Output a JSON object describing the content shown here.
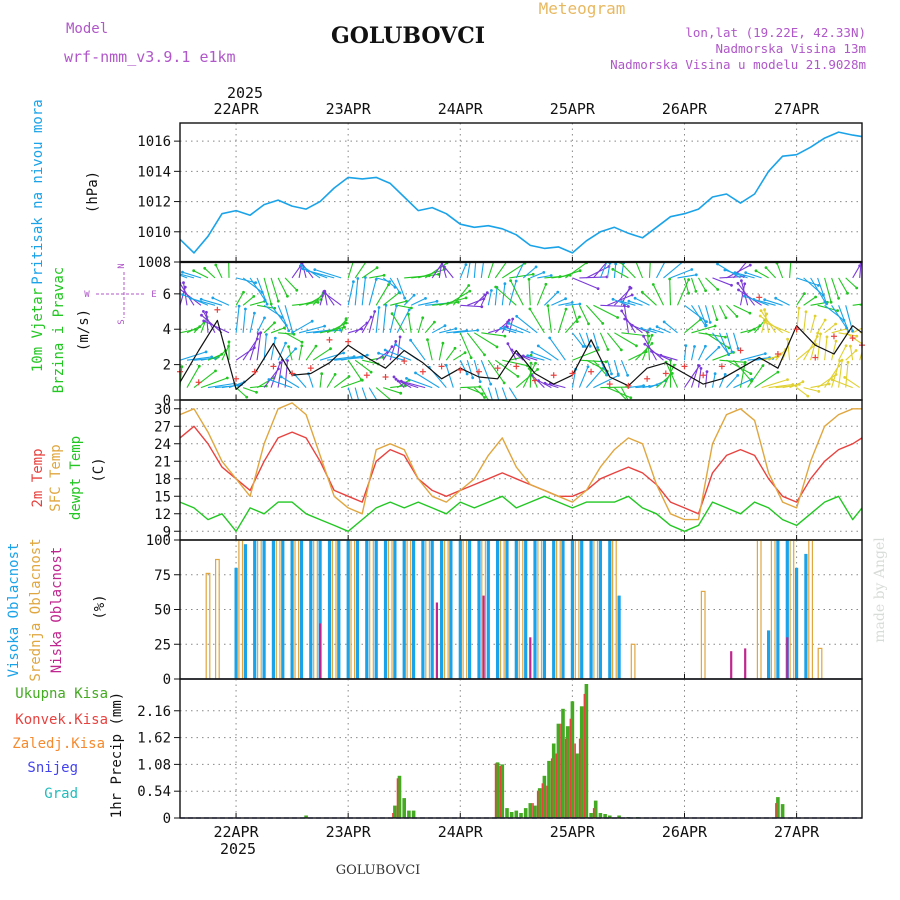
{
  "header": {
    "model_label": "Model",
    "model_name": "wrf-nmm_v3.9.1 e1km",
    "station": "GOLUBOVCI",
    "chart_kind": "Meteogram",
    "lonlat": "lon,lat (19.22E, 42.33N)",
    "altitude": "Nadmorska Visina 13m",
    "model_altitude": "Nadmorska Visina u modelu 21.9028m"
  },
  "footer": {
    "station": "GOLUBOVCI",
    "credit": "made by Angel"
  },
  "colors": {
    "pressure": "#1aa3e8",
    "temp2m": "#e8423f",
    "sfc": "#e0a63f",
    "dewpt": "#22c722",
    "high": "#1aa3e8",
    "mid": "#e0a63f",
    "low": "#c0268f",
    "total": "#44aa22",
    "conv": "#e8423f",
    "frozen": "#f58a2e",
    "snow": "#4444ee",
    "hail": "#22bbbb",
    "model": "#b057c9"
  },
  "x_axis": {
    "year": "2025",
    "days": [
      "22APR",
      "23APR",
      "24APR",
      "25APR",
      "26APR",
      "27APR"
    ],
    "day_hours": [
      12,
      36,
      60,
      84,
      108,
      132
    ],
    "range_hours": [
      0,
      146
    ]
  },
  "wind_compass": {
    "north": "N",
    "south": "S",
    "east": "E",
    "west": "W"
  },
  "chart_data": [
    {
      "type": "line",
      "title": "",
      "ylabel": "Pritisak na nivou mora",
      "unit": "(hPa)",
      "ylim": [
        1008,
        1017.2
      ],
      "yticks": [
        1008,
        1010,
        1012,
        1014,
        1016
      ],
      "grid": true,
      "series": [
        {
          "name": "Pritisak na nivou mora",
          "x": [
            0,
            3,
            6,
            9,
            12,
            15,
            18,
            21,
            24,
            27,
            30,
            33,
            36,
            39,
            42,
            45,
            48,
            51,
            54,
            57,
            60,
            63,
            66,
            69,
            72,
            75,
            78,
            81,
            84,
            87,
            90,
            93,
            96,
            99,
            102,
            105,
            108,
            111,
            114,
            117,
            120,
            123,
            126,
            129,
            132,
            135,
            138,
            141,
            144,
            146
          ],
          "y": [
            1009.5,
            1008.6,
            1009.7,
            1011.2,
            1011.4,
            1011.1,
            1011.8,
            1012.1,
            1011.7,
            1011.5,
            1012.0,
            1012.9,
            1013.6,
            1013.5,
            1013.6,
            1013.2,
            1012.3,
            1011.4,
            1011.6,
            1011.2,
            1010.5,
            1010.3,
            1010.4,
            1010.2,
            1009.8,
            1009.1,
            1008.9,
            1009.0,
            1008.6,
            1009.4,
            1010.0,
            1010.3,
            1009.9,
            1009.6,
            1010.3,
            1011.0,
            1011.2,
            1011.5,
            1012.3,
            1012.5,
            1011.9,
            1012.5,
            1014.0,
            1015.0,
            1015.1,
            1015.6,
            1016.2,
            1016.6,
            1016.4,
            1016.3
          ]
        }
      ]
    },
    {
      "type": "line",
      "title": "",
      "ylabel": "10m Vjetar Brzina i Pravac",
      "unit": "(m/s)",
      "ylim": [
        0,
        7.8
      ],
      "yticks": [
        0,
        2,
        4,
        6
      ],
      "grid": true,
      "series": [
        {
          "name": "10m Vjetar",
          "x": [
            0,
            4,
            8,
            12,
            16,
            20,
            24,
            28,
            32,
            36,
            40,
            44,
            48,
            52,
            56,
            60,
            64,
            68,
            72,
            76,
            80,
            84,
            88,
            92,
            96,
            100,
            104,
            108,
            112,
            116,
            120,
            124,
            128,
            132,
            136,
            140,
            144,
            146
          ],
          "y": [
            1.0,
            2.8,
            4.5,
            0.6,
            1.5,
            3.2,
            1.4,
            1.5,
            2.1,
            3.1,
            2.4,
            1.8,
            2.8,
            2.1,
            1.2,
            1.8,
            1.3,
            1.2,
            2.8,
            1.5,
            0.9,
            1.4,
            3.4,
            1.3,
            0.8,
            1.8,
            2.1,
            1.5,
            0.9,
            1.2,
            1.8,
            2.4,
            1.8,
            4.2,
            3.1,
            2.6,
            4.2,
            3.8
          ]
        },
        {
          "name": "udari",
          "x": [
            0,
            4,
            8,
            12,
            16,
            20,
            24,
            28,
            32,
            36,
            40,
            44,
            48,
            52,
            56,
            60,
            64,
            68,
            72,
            76,
            80,
            84,
            88,
            92,
            96,
            100,
            104,
            108,
            112,
            116,
            120,
            124,
            128,
            132,
            136,
            140,
            144,
            146
          ],
          "y": [
            1.6,
            1.0,
            5.1,
            1.2,
            1.6,
            1.9,
            1.5,
            1.8,
            3.4,
            3.3,
            1.4,
            1.3,
            2.2,
            1.6,
            1.9,
            1.7,
            1.6,
            1.8,
            1.9,
            1.1,
            1.4,
            1.5,
            1.6,
            0.9,
            0.8,
            1.2,
            1.5,
            1.9,
            1.4,
            1.9,
            2.8,
            5.8,
            2.6,
            4.0,
            2.4,
            3.6,
            3.5,
            3.1
          ]
        }
      ]
    },
    {
      "type": "line",
      "title": "",
      "ylabel": "2m Temp / SFC Temp / dewpt Temp",
      "unit": "(C)",
      "ylim": [
        7.5,
        31.5
      ],
      "yticks": [
        9,
        12,
        15,
        18,
        21,
        24,
        27,
        30
      ],
      "grid": true,
      "series": [
        {
          "name": "2m Temp",
          "x": [
            0,
            3,
            6,
            9,
            12,
            15,
            18,
            21,
            24,
            27,
            30,
            33,
            36,
            39,
            42,
            45,
            48,
            51,
            54,
            57,
            60,
            63,
            66,
            69,
            72,
            75,
            78,
            81,
            84,
            87,
            90,
            93,
            96,
            99,
            102,
            105,
            108,
            111,
            114,
            117,
            120,
            123,
            126,
            129,
            132,
            135,
            138,
            141,
            144,
            146
          ],
          "y": [
            25,
            27,
            24,
            20,
            18,
            16,
            21,
            25,
            26,
            25,
            21,
            16,
            15,
            14,
            21,
            23,
            22,
            18,
            16,
            15,
            16,
            17,
            18,
            19,
            18,
            17,
            16,
            15,
            15,
            16,
            18,
            19,
            20,
            19,
            17,
            14,
            13,
            12,
            19,
            22,
            23,
            22,
            18,
            15,
            14,
            18,
            21,
            23,
            24,
            25
          ]
        },
        {
          "name": "SFC Temp",
          "x": [
            0,
            3,
            6,
            9,
            12,
            15,
            18,
            21,
            24,
            27,
            30,
            33,
            36,
            39,
            42,
            45,
            48,
            51,
            54,
            57,
            60,
            63,
            66,
            69,
            72,
            75,
            78,
            81,
            84,
            87,
            90,
            93,
            96,
            99,
            102,
            105,
            108,
            111,
            114,
            117,
            120,
            123,
            126,
            129,
            132,
            135,
            138,
            141,
            144,
            146
          ],
          "y": [
            29,
            30,
            26,
            21,
            18,
            15,
            24,
            30,
            31,
            29,
            22,
            15,
            13,
            12,
            23,
            24,
            23,
            18,
            15,
            14,
            16,
            18,
            22,
            25,
            20,
            17,
            16,
            15,
            14,
            16,
            20,
            23,
            25,
            24,
            17,
            12,
            11,
            11,
            24,
            29,
            30,
            28,
            19,
            14,
            13,
            21,
            27,
            29,
            30,
            30
          ]
        },
        {
          "name": "dewpt Temp",
          "x": [
            0,
            3,
            6,
            9,
            12,
            15,
            18,
            21,
            24,
            27,
            30,
            33,
            36,
            39,
            42,
            45,
            48,
            51,
            54,
            57,
            60,
            63,
            66,
            69,
            72,
            75,
            78,
            81,
            84,
            87,
            90,
            93,
            96,
            99,
            102,
            105,
            108,
            111,
            114,
            117,
            120,
            123,
            126,
            129,
            132,
            135,
            138,
            141,
            144,
            146
          ],
          "y": [
            14,
            13,
            11,
            12,
            9,
            13,
            12,
            14,
            14,
            12,
            11,
            10,
            9,
            11,
            13,
            14,
            13,
            14,
            13,
            12,
            14,
            13,
            14,
            15,
            13,
            14,
            15,
            14,
            13,
            14,
            14,
            14,
            15,
            13,
            12,
            10,
            9,
            10,
            14,
            13,
            12,
            14,
            13,
            11,
            10,
            12,
            14,
            15,
            11,
            13
          ]
        }
      ]
    },
    {
      "type": "bar",
      "title": "",
      "ylabel": "Visoka Oblacnost / Srednja Oblacnost / Niska Oblacnost",
      "unit": "(%)",
      "ylim": [
        0,
        100
      ],
      "yticks": [
        0,
        25,
        50,
        75,
        100
      ],
      "grid": true,
      "series": [
        {
          "name": "Visoka Oblacnost",
          "x": [
            12,
            14,
            16,
            18,
            20,
            22,
            24,
            26,
            28,
            30,
            32,
            34,
            36,
            38,
            40,
            42,
            44,
            46,
            48,
            50,
            52,
            54,
            56,
            58,
            60,
            62,
            64,
            66,
            68,
            70,
            72,
            74,
            76,
            78,
            80,
            82,
            84,
            86,
            88,
            90,
            92,
            94,
            120,
            126,
            128,
            130,
            132,
            134
          ],
          "y": [
            80,
            97,
            100,
            100,
            100,
            100,
            100,
            100,
            100,
            100,
            100,
            100,
            100,
            100,
            100,
            100,
            100,
            100,
            100,
            100,
            100,
            100,
            100,
            100,
            100,
            100,
            100,
            100,
            100,
            100,
            100,
            100,
            100,
            100,
            100,
            100,
            100,
            100,
            100,
            100,
            100,
            60,
            0,
            35,
            100,
            100,
            80,
            90
          ]
        },
        {
          "name": "Srednja Oblacnost",
          "x": [
            6,
            8,
            13,
            17,
            21,
            25,
            29,
            33,
            37,
            41,
            45,
            49,
            53,
            57,
            61,
            65,
            69,
            73,
            77,
            81,
            85,
            89,
            93,
            97,
            112,
            124,
            127,
            131,
            135,
            137
          ],
          "y": [
            76,
            86,
            100,
            100,
            100,
            100,
            100,
            100,
            100,
            100,
            100,
            100,
            100,
            100,
            100,
            100,
            100,
            100,
            100,
            100,
            100,
            100,
            100,
            25,
            63,
            100,
            100,
            100,
            100,
            22
          ]
        },
        {
          "name": "Niska Oblacnost",
          "x": [
            30,
            55,
            65,
            75,
            118,
            121,
            130
          ],
          "y": [
            40,
            55,
            60,
            30,
            20,
            22,
            30
          ]
        }
      ]
    },
    {
      "type": "bar",
      "title": "",
      "ylabel": "1hr Precip",
      "unit": "(mm)",
      "ylim": [
        0,
        2.8
      ],
      "yticks": [
        0,
        0.54,
        1.08,
        1.62,
        2.16
      ],
      "grid": true,
      "series": [
        {
          "name": "Ukupna Kisa",
          "x": [
            27,
            46,
            47,
            48,
            49,
            50,
            68,
            69,
            70,
            71,
            72,
            73,
            74,
            75,
            76,
            77,
            78,
            79,
            80,
            81,
            82,
            83,
            84,
            85,
            86,
            87,
            88,
            89,
            90,
            91,
            92,
            94,
            96,
            98,
            128,
            129
          ],
          "y": [
            0.05,
            0.25,
            0.85,
            0.4,
            0.15,
            0.15,
            1.12,
            1.08,
            0.2,
            0.12,
            0.15,
            0.1,
            0.2,
            0.3,
            0.25,
            0.6,
            0.85,
            1.15,
            1.5,
            1.9,
            2.2,
            1.85,
            2.35,
            1.3,
            2.25,
            2.7,
            0.1,
            0.35,
            0.1,
            0.08,
            0.05,
            0.05,
            0.02,
            0.02,
            0.42,
            0.28
          ]
        },
        {
          "name": "Konvek.Kisa",
          "x": [
            46,
            47,
            68,
            69,
            76,
            77,
            78,
            79,
            80,
            81,
            82,
            83,
            84,
            85,
            86,
            87,
            89,
            128
          ],
          "y": [
            0.1,
            0.8,
            1.1,
            1.05,
            0.3,
            0.55,
            0.7,
            0.65,
            1.2,
            1.3,
            1.9,
            1.6,
            2.0,
            1.5,
            1.6,
            2.5,
            0.2,
            0.3
          ]
        },
        {
          "name": "Zaledj.Kisa",
          "x": [],
          "y": []
        },
        {
          "name": "Snijeg",
          "x": [],
          "y": []
        },
        {
          "name": "Grad",
          "x": [],
          "y": []
        }
      ]
    }
  ]
}
